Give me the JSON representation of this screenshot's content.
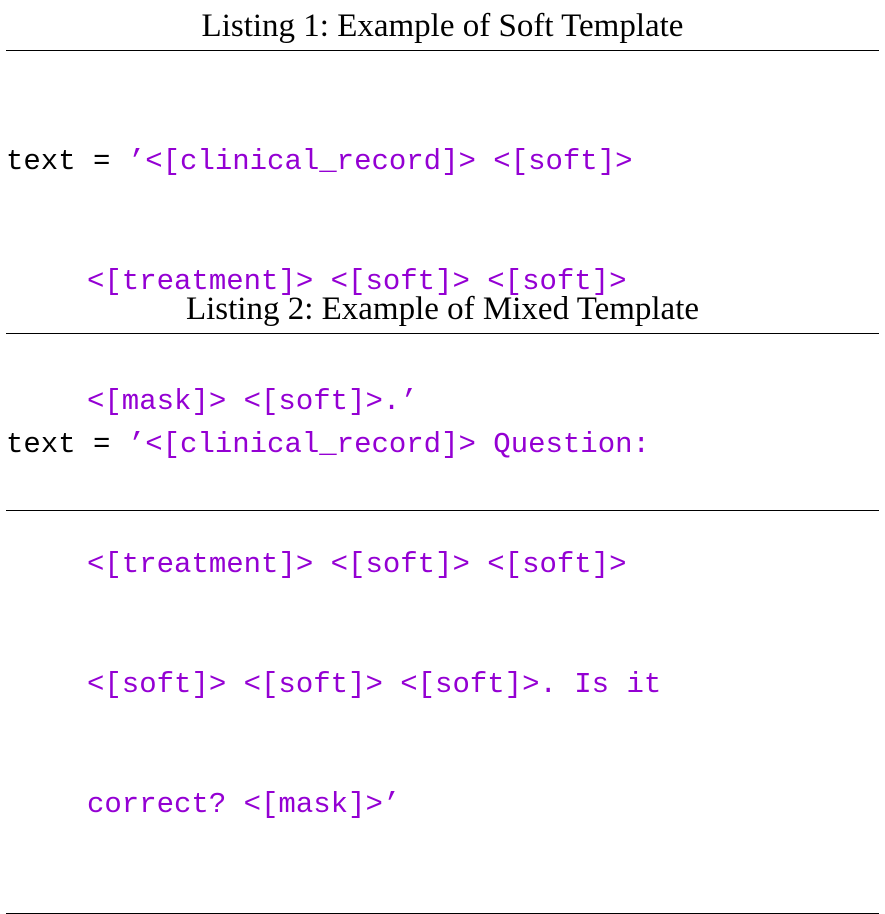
{
  "listings": [
    {
      "caption": "Listing 1: Example of Soft Template",
      "code": {
        "prefix": "text = ",
        "lines": [
          "’<[clinical_record]> <[soft]>",
          "<[treatment]> <[soft]> <[soft]>",
          "<[mask]> <[soft]>.’"
        ]
      }
    },
    {
      "caption": "Listing 2: Example of Mixed Template",
      "code": {
        "prefix": "text = ",
        "lines": [
          "’<[clinical_record]> Question:",
          "<[treatment]> <[soft]> <[soft]>",
          "<[soft]> <[soft]> <[soft]>. Is it",
          "correct? <[mask]>’"
        ]
      }
    }
  ],
  "colors": {
    "string": "#9400d3",
    "text": "#000000",
    "rule": "#000000"
  }
}
